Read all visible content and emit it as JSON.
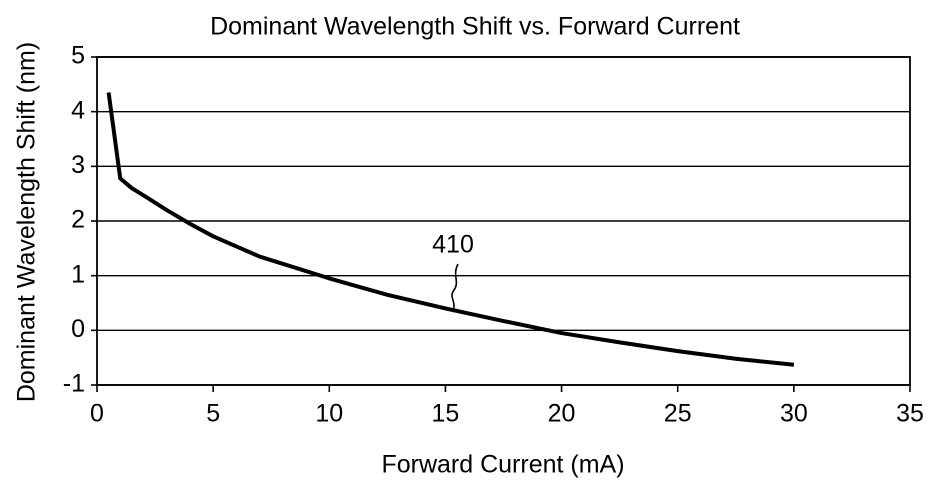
{
  "chart_data": {
    "type": "line",
    "title": "Dominant Wavelength Shift vs. Forward Current",
    "x_label": "Forward Current (mA)",
    "y_label": "Dominant Wavelength Shift (nm)",
    "annotation": "410",
    "x": [
      0.5,
      1,
      1.5,
      2,
      3,
      4,
      5,
      7,
      10,
      12.5,
      15,
      17.5,
      20,
      22.5,
      25,
      27.5,
      30
    ],
    "series": [
      {
        "name": "410",
        "color": "#000000",
        "values": [
          4.35,
          2.78,
          2.6,
          2.47,
          2.2,
          1.95,
          1.72,
          1.35,
          0.95,
          0.65,
          0.4,
          0.17,
          -0.05,
          -0.22,
          -0.38,
          -0.52,
          -0.63
        ]
      }
    ],
    "xlim": [
      0,
      35
    ],
    "xticks": [
      0,
      5,
      10,
      15,
      20,
      25,
      30,
      35
    ],
    "ylim": [
      -1,
      5
    ],
    "yticks": [
      -1,
      0,
      1,
      2,
      3,
      4,
      5
    ],
    "grid": true
  }
}
